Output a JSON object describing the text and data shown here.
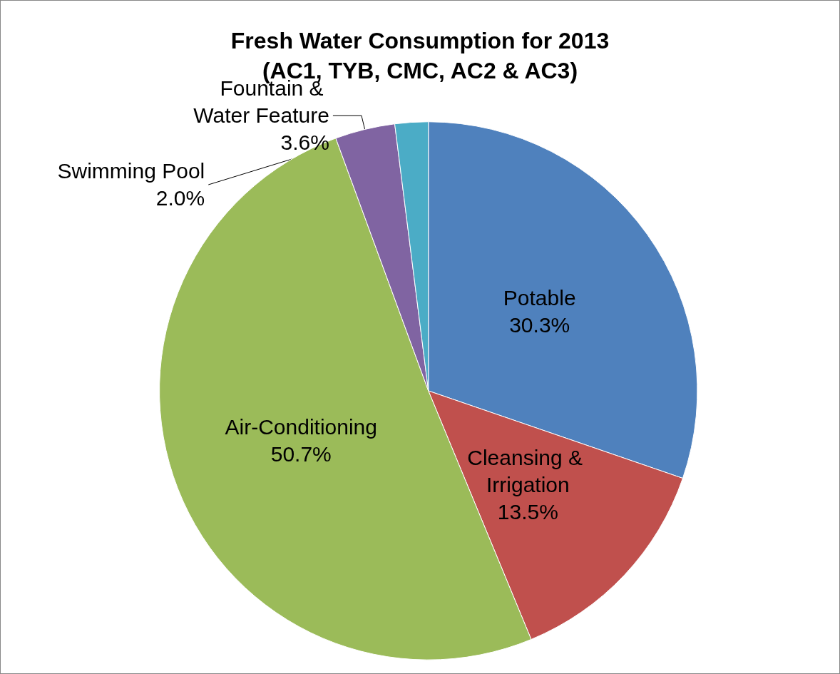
{
  "chart_data": {
    "type": "pie",
    "title": "Fresh Water Consumption for 2013\n(AC1, TYB, CMC, AC2 & AC3)",
    "categories": [
      "Potable",
      "Cleansing & Irrigation",
      "Air-Conditioning",
      "Fountain & Water Feature",
      "Swimming Pool"
    ],
    "values": [
      30.3,
      13.5,
      50.7,
      3.6,
      2.0
    ],
    "value_labels": [
      "30.3%",
      "13.5%",
      "50.7%",
      "3.6%",
      "2.0%"
    ],
    "colors": [
      "#4f81bd",
      "#c0504d",
      "#9bbb59",
      "#8064a2",
      "#4bacc6"
    ],
    "legend": false
  }
}
